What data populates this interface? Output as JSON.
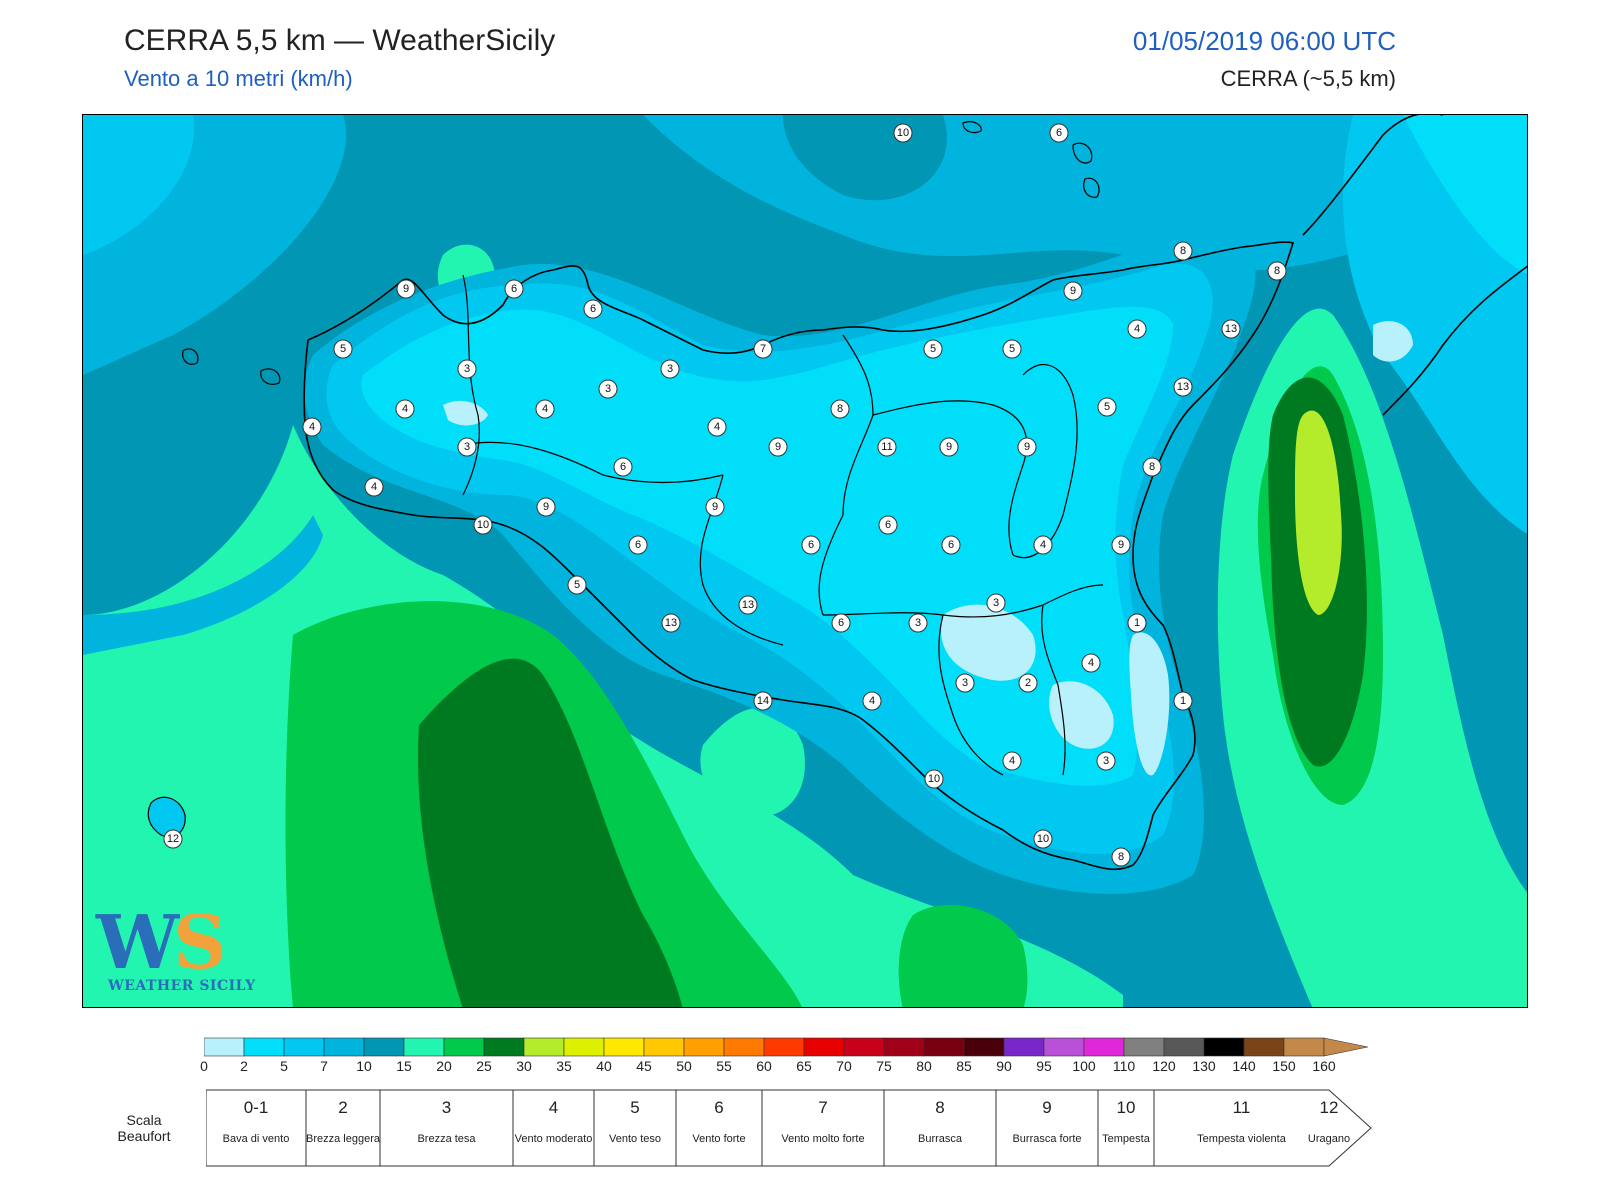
{
  "header": {
    "title": "CERRA 5,5 km — WeatherSicily",
    "subtitle": "Vento a 10 metri (km/h)",
    "datetime": "01/05/2019 06:00 UTC",
    "model": "CERRA (~5,5 km)"
  },
  "logo": {
    "letters_w": "W",
    "letters_s": "S",
    "name": "WEATHER SICILY"
  },
  "colorbar": {
    "ticks": [
      "0",
      "2",
      "5",
      "7",
      "10",
      "15",
      "20",
      "25",
      "30",
      "35",
      "40",
      "45",
      "50",
      "55",
      "60",
      "65",
      "70",
      "75",
      "80",
      "85",
      "90",
      "95",
      "100",
      "110",
      "120",
      "130",
      "140",
      "150",
      "160"
    ],
    "colors": [
      "#b8f1fb",
      "#00def9",
      "#00c8f0",
      "#00b4dd",
      "#0096b4",
      "#22f5b0",
      "#00c94c",
      "#007a20",
      "#b4ec2c",
      "#dcf000",
      "#ffe800",
      "#ffc800",
      "#ffa000",
      "#ff7a00",
      "#ff3a00",
      "#e80000",
      "#c8001a",
      "#a00018",
      "#780010",
      "#4a0008",
      "#7828c8",
      "#b850d8",
      "#e028d8",
      "#808080",
      "#585858",
      "#000000",
      "#7a4418",
      "#c4884a"
    ]
  },
  "beaufort": {
    "title": "Scala Beaufort",
    "classes": [
      {
        "num": "0-1",
        "desc": "Bava di vento"
      },
      {
        "num": "2",
        "desc": "Brezza leggera"
      },
      {
        "num": "3",
        "desc": "Brezza tesa"
      },
      {
        "num": "4",
        "desc": "Vento moderato"
      },
      {
        "num": "5",
        "desc": "Vento teso"
      },
      {
        "num": "6",
        "desc": "Vento forte"
      },
      {
        "num": "7",
        "desc": "Vento molto forte"
      },
      {
        "num": "8",
        "desc": "Burrasca"
      },
      {
        "num": "9",
        "desc": "Burrasca forte"
      },
      {
        "num": "10",
        "desc": "Tempesta"
      },
      {
        "num": "11",
        "desc": "Tempesta violenta"
      },
      {
        "num": "12",
        "desc": "Uragano"
      }
    ]
  },
  "station_values": [
    "10",
    "6",
    "8",
    "8",
    "9",
    "6",
    "6",
    "9",
    "5",
    "7",
    "5",
    "5",
    "4",
    "13",
    "3",
    "3",
    "3",
    "13",
    "4",
    "4",
    "4",
    "8",
    "5",
    "9",
    "3",
    "4",
    "9",
    "11",
    "9",
    "8",
    "6",
    "6",
    "4",
    "9",
    "9",
    "10",
    "6",
    "6",
    "6",
    "9",
    "4",
    "5",
    "4",
    "13",
    "13",
    "6",
    "3",
    "3",
    "1",
    "4",
    "3",
    "2",
    "1",
    "14",
    "4",
    "4",
    "3",
    "10",
    "10",
    "8",
    "12"
  ]
}
